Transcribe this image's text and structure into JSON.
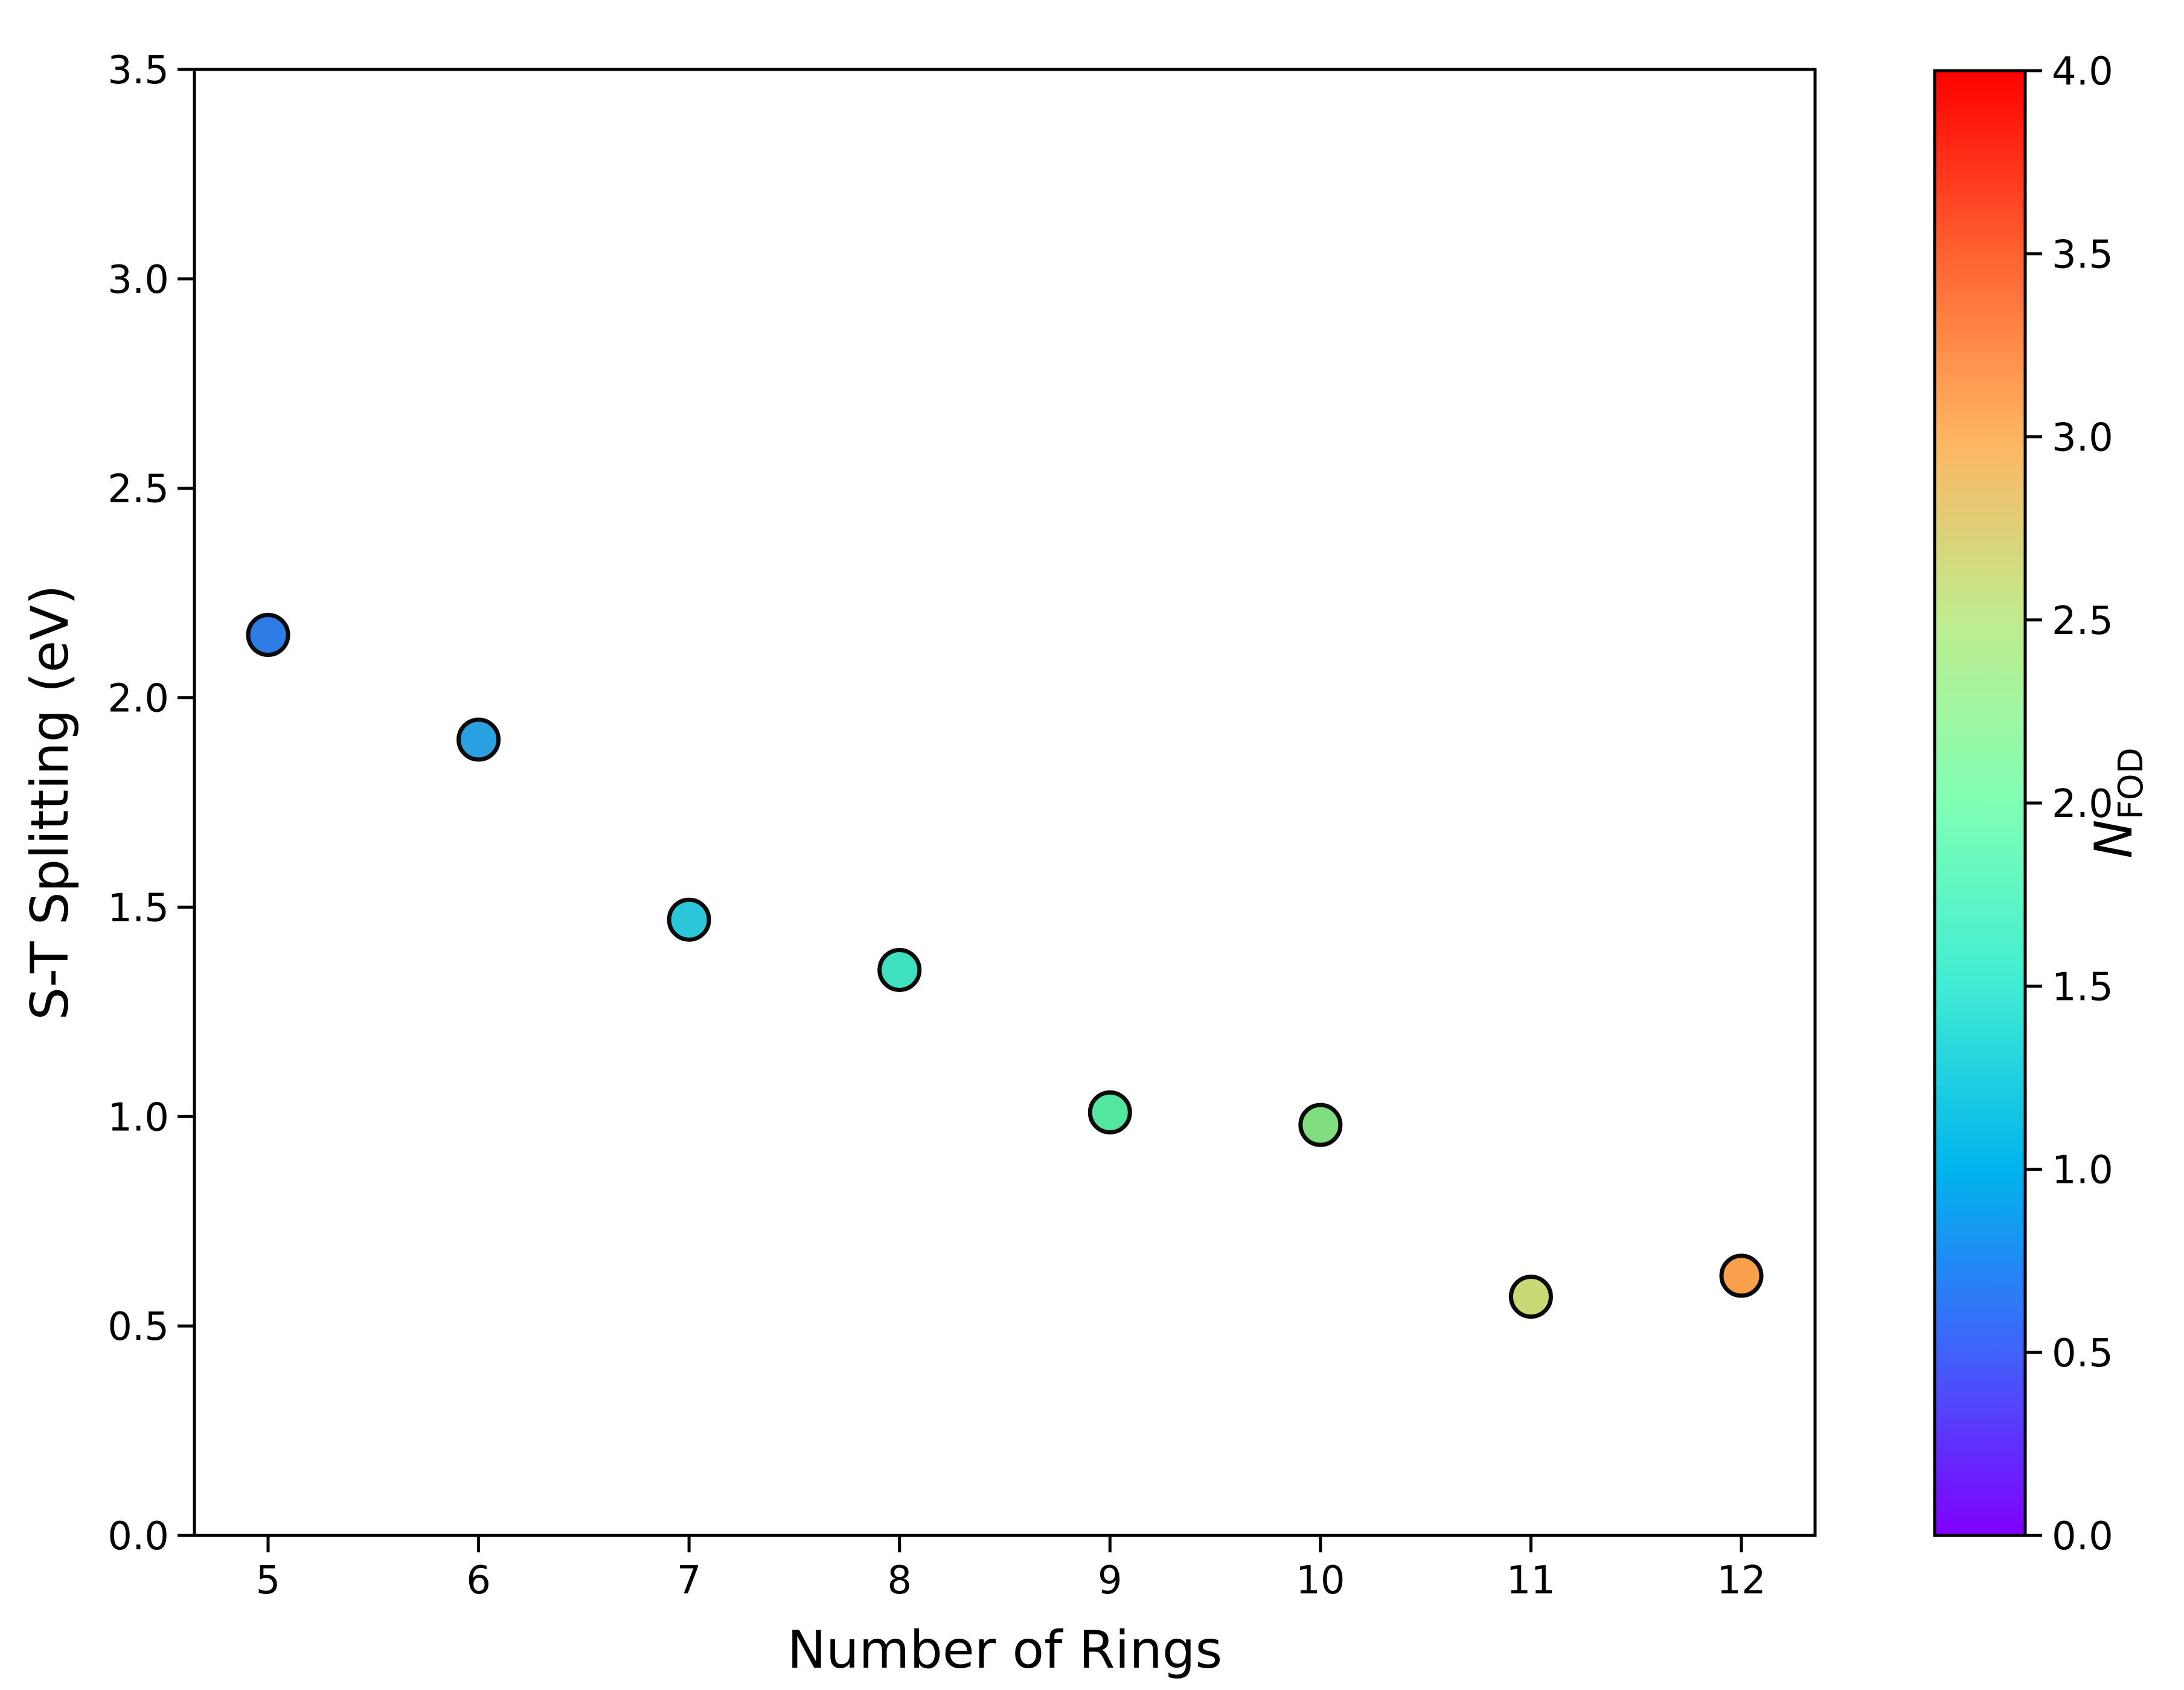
{
  "figure": {
    "background_color": "#ffffff",
    "spine_color": "#000000",
    "marker_edge_color": "#0a0a0a"
  },
  "chart_data": {
    "type": "scatter",
    "title": "",
    "xlabel": "Number of Rings",
    "ylabel": "S-T Splitting (eV)",
    "x": [
      5,
      6,
      7,
      8,
      9,
      10,
      11,
      12
    ],
    "y": [
      2.15,
      1.9,
      1.47,
      1.35,
      1.01,
      0.98,
      0.57,
      0.62
    ],
    "point_colors": [
      "#2E7CE5",
      "#29A0E0",
      "#2CC6D9",
      "#3FE0C0",
      "#52E69E",
      "#80DD80",
      "#C9DA74",
      "#F9A04A"
    ],
    "nfod_color_values_estimated": [
      0.7,
      1.0,
      1.3,
      1.6,
      1.9,
      2.1,
      2.6,
      3.1
    ],
    "xlim": [
      4.65,
      12.35
    ],
    "ylim": [
      0.0,
      3.5
    ],
    "xticks": [
      5,
      6,
      7,
      8,
      9,
      10,
      11,
      12
    ],
    "xtick_labels": [
      "5",
      "6",
      "7",
      "8",
      "9",
      "10",
      "11",
      "12"
    ],
    "yticks": [
      0.0,
      0.5,
      1.0,
      1.5,
      2.0,
      2.5,
      3.0,
      3.5
    ],
    "ytick_labels": [
      "0.0",
      "0.5",
      "1.0",
      "1.5",
      "2.0",
      "2.5",
      "3.0",
      "3.5"
    ],
    "grid": false,
    "legend": null,
    "colorbar": {
      "label_main": "N",
      "label_sub": "FOD",
      "range": [
        0.0,
        4.0
      ],
      "ticks": [
        0.0,
        0.5,
        1.0,
        1.5,
        2.0,
        2.5,
        3.0,
        3.5,
        4.0
      ],
      "tick_labels": [
        "0.0",
        "0.5",
        "1.0",
        "1.5",
        "2.0",
        "2.5",
        "3.0",
        "3.5",
        "4.0"
      ],
      "colormap": "rainbow",
      "gradient_stops": [
        {
          "offset": 0.0,
          "color": "#8000FF"
        },
        {
          "offset": 0.125,
          "color": "#4062FA"
        },
        {
          "offset": 0.25,
          "color": "#00B4EC"
        },
        {
          "offset": 0.375,
          "color": "#40ECD4"
        },
        {
          "offset": 0.5,
          "color": "#80FFB4"
        },
        {
          "offset": 0.625,
          "color": "#BFEC8E"
        },
        {
          "offset": 0.75,
          "color": "#FFB462"
        },
        {
          "offset": 0.875,
          "color": "#FF6232"
        },
        {
          "offset": 1.0,
          "color": "#FF0000"
        }
      ]
    }
  }
}
